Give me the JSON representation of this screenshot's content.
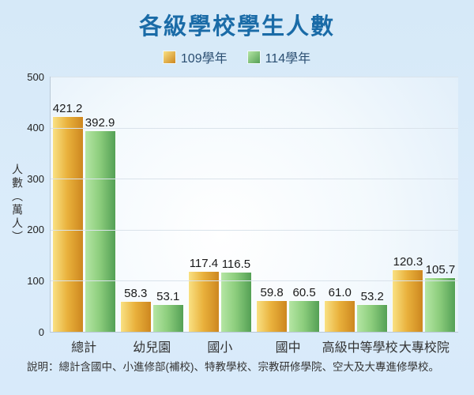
{
  "title": "各級學校學生人數",
  "legend": {
    "items": [
      {
        "label": "109學年",
        "swatch": "orange-gradient-swatch"
      },
      {
        "label": "114學年",
        "swatch": "green-gradient-swatch"
      }
    ]
  },
  "chart_data": {
    "type": "bar",
    "title": "各級學校學生人數",
    "categories": [
      "總計",
      "幼兒園",
      "國小",
      "國中",
      "高級中等學校",
      "大專校院"
    ],
    "series": [
      {
        "name": "109學年",
        "values": [
          421.2,
          58.3,
          117.4,
          59.8,
          61.0,
          120.3
        ]
      },
      {
        "name": "114學年",
        "values": [
          392.9,
          53.1,
          116.5,
          60.5,
          53.2,
          105.7
        ]
      }
    ],
    "xlabel": "",
    "ylabel": "人數（萬人）",
    "ylim": [
      0,
      500
    ],
    "yticks": [
      0,
      100,
      200,
      300,
      400,
      500
    ],
    "grid": true,
    "legend_position": "top-center",
    "value_labels_decimals": 1
  },
  "footer": {
    "note": "說明：總計含國中、小進修部(補校)、特教學校、宗教研修學院、空大及大專進修學校。"
  },
  "colors": {
    "background": "#d8eafa",
    "title_blue": "#1a6ba7",
    "legend_text": "#2a4e71",
    "series_109_from": "#f9e183",
    "series_109_mid": "#e9b13c",
    "series_109_to": "#cd871f",
    "series_114_from": "#b5e6a4",
    "series_114_mid": "#8ccd7c",
    "series_114_to": "#54a055",
    "gridline": "#dae3eb",
    "axis_line": "#b9c8d6",
    "value_label": "#1a1a1a"
  }
}
